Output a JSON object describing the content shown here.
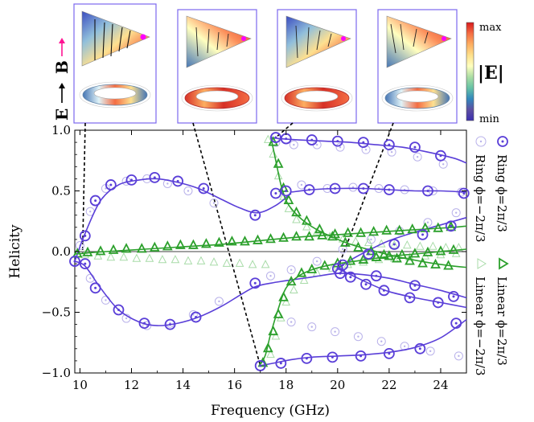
{
  "insets": {
    "field_labels": {
      "e": "E",
      "b": "B"
    },
    "count": 4
  },
  "colorbar": {
    "symbol": "|E|",
    "max_label": "max",
    "min_label": "min",
    "stops": [
      "#d7191c",
      "#f46d43",
      "#fdae61",
      "#fee08b",
      "#ffffbf",
      "#abdda4",
      "#66c2a5",
      "#3288bd",
      "#5e4fa2",
      "#3b2fb0"
    ]
  },
  "colors": {
    "ring": "#5a3fd8",
    "linear": "#2ca02c",
    "ring_faint": "#b9b2ea",
    "linear_faint": "#a8dba8"
  },
  "chart_data": {
    "type": "line",
    "xlabel": "Frequency (GHz)",
    "ylabel": "Helicity",
    "xlim": [
      9.8,
      25
    ],
    "ylim": [
      -1.0,
      1.0
    ],
    "x_ticks": [
      10,
      12,
      14,
      16,
      18,
      20,
      22,
      24
    ],
    "y_ticks": [
      -1.0,
      -0.5,
      0.0,
      0.5,
      1.0
    ],
    "y_tick_labels": [
      "−1.0",
      "−0.5",
      "0.0",
      "0.5",
      "1.0"
    ],
    "legend": [
      {
        "label": "Ring ϕ=2π/3",
        "marker": "circle"
      },
      {
        "label": "Ring ϕ=−2π/3",
        "marker": "circle-faint"
      },
      {
        "label": "Linear ϕ=2π/3",
        "marker": "triangle"
      },
      {
        "label": "Linear ϕ=−2π/3",
        "marker": "triangle-faint"
      }
    ],
    "ring_curves": [
      {
        "x": [
          9.8,
          10.2,
          10.8,
          11.5,
          12.3,
          13.0,
          13.8,
          14.6,
          15.5,
          16.2,
          16.9,
          17.6,
          18.2
        ],
        "y": [
          -0.08,
          0.15,
          0.42,
          0.55,
          0.59,
          0.6,
          0.57,
          0.52,
          0.43,
          0.36,
          0.32,
          0.38,
          0.48
        ]
      },
      {
        "x": [
          18.2,
          19.0,
          20.0,
          21.0,
          22.0,
          23.0,
          24.0,
          25.0
        ],
        "y": [
          0.49,
          0.51,
          0.52,
          0.52,
          0.51,
          0.5,
          0.5,
          0.49
        ]
      },
      {
        "x": [
          9.8,
          10.2,
          10.8,
          11.5,
          12.3,
          13.0,
          13.8,
          14.6,
          15.5,
          16.2,
          16.8,
          17.4,
          18.0,
          19.0,
          20.0,
          21.0,
          22.0,
          23.0,
          24.0,
          25.0
        ],
        "y": [
          -0.08,
          -0.12,
          -0.3,
          -0.48,
          -0.58,
          -0.61,
          -0.59,
          -0.54,
          -0.45,
          -0.36,
          -0.29,
          -0.26,
          -0.24,
          -0.21,
          -0.18,
          -0.19,
          -0.22,
          -0.27,
          -0.32,
          -0.38
        ]
      },
      {
        "x": [
          17.4,
          17.8,
          18.5,
          19.5,
          20.5,
          21.5,
          22.5,
          23.5,
          24.5,
          25.0
        ],
        "y": [
          0.94,
          0.93,
          0.92,
          0.91,
          0.9,
          0.88,
          0.86,
          0.82,
          0.77,
          0.73
        ]
      },
      {
        "x": [
          17.0,
          17.5,
          18.2,
          19.0,
          20.0,
          21.0,
          22.0,
          23.0,
          24.0,
          25.0
        ],
        "y": [
          -0.94,
          -0.92,
          -0.89,
          -0.87,
          -0.86,
          -0.85,
          -0.83,
          -0.79,
          -0.71,
          -0.56
        ]
      },
      {
        "x": [
          20.0,
          20.5,
          21.2,
          22.0,
          23.0,
          24.0,
          25.0
        ],
        "y": [
          -0.14,
          -0.07,
          0.01,
          0.09,
          0.16,
          0.22,
          0.28
        ]
      },
      {
        "x": [
          20.0,
          20.6,
          21.3,
          22.0,
          23.0,
          24.0,
          25.0
        ],
        "y": [
          -0.14,
          -0.2,
          -0.27,
          -0.33,
          -0.38,
          -0.42,
          -0.46
        ]
      }
    ],
    "ring_markers": {
      "x": [
        9.8,
        10.2,
        10.6,
        11.2,
        12.0,
        12.9,
        13.8,
        14.8,
        16.8,
        17.6,
        18.0,
        19.0,
        20.0,
        21.0,
        22.0,
        23.0,
        24.0,
        10.2,
        10.6,
        11.5,
        12.5,
        13.5,
        14.5,
        17.6,
        18.0,
        18.9,
        19.9,
        21.0,
        22.0,
        23.5,
        24.9,
        17.0,
        17.8,
        18.8,
        19.8,
        20.9,
        22.0,
        23.2,
        24.6,
        20.2,
        21.2,
        22.2,
        23.3,
        24.4,
        20.0,
        20.5,
        21.1,
        21.8,
        22.8,
        23.9,
        16.8,
        20.1,
        21.5,
        23.0,
        24.5
      ],
      "y": [
        -0.08,
        0.13,
        0.42,
        0.55,
        0.59,
        0.61,
        0.58,
        0.52,
        0.3,
        0.94,
        0.93,
        0.92,
        0.91,
        0.9,
        0.88,
        0.86,
        0.79,
        -0.1,
        -0.3,
        -0.48,
        -0.59,
        -0.6,
        -0.54,
        0.48,
        0.5,
        0.51,
        0.52,
        0.52,
        0.51,
        0.5,
        0.48,
        -0.94,
        -0.92,
        -0.88,
        -0.87,
        -0.86,
        -0.84,
        -0.8,
        -0.59,
        -0.11,
        -0.02,
        0.06,
        0.14,
        0.21,
        -0.14,
        -0.21,
        -0.27,
        -0.32,
        -0.38,
        -0.42,
        -0.26,
        -0.18,
        -0.2,
        -0.28,
        -0.37
      ]
    },
    "ring_faint_markers": {
      "x": [
        10.0,
        10.4,
        11.0,
        11.8,
        12.6,
        13.4,
        14.2,
        15.2,
        10.4,
        11.0,
        11.8,
        12.6,
        13.5,
        14.4,
        15.4,
        17.6,
        18.3,
        19.2,
        20.1,
        21.1,
        22.1,
        23.1,
        24.1,
        17.4,
        18.2,
        19.2,
        20.2,
        21.3,
        22.4,
        23.5,
        24.6,
        18.2,
        19.0,
        19.9,
        20.8,
        21.7,
        22.6,
        23.6,
        24.7,
        18.6,
        19.6,
        20.6,
        21.6,
        22.6,
        23.7,
        24.8
      ],
      "y": [
        0.05,
        0.33,
        0.52,
        0.58,
        0.6,
        0.56,
        0.5,
        0.4,
        -0.22,
        -0.4,
        -0.55,
        -0.61,
        -0.59,
        -0.52,
        -0.41,
        0.9,
        0.88,
        0.88,
        0.86,
        0.84,
        0.82,
        0.78,
        0.72,
        -0.2,
        -0.15,
        -0.08,
        0.02,
        0.1,
        0.17,
        0.24,
        0.32,
        -0.58,
        -0.62,
        -0.66,
        -0.7,
        -0.74,
        -0.78,
        -0.82,
        -0.86,
        0.55,
        0.52,
        0.53,
        0.52,
        0.51,
        0.5,
        0.49
      ]
    },
    "linear_curves": [
      {
        "x": [
          9.8,
          11.0,
          12.5,
          14.0,
          15.5,
          17.0,
          18.5,
          20.0,
          21.5,
          23.0,
          24.5,
          25.0
        ],
        "y": [
          -0.02,
          0.0,
          0.02,
          0.04,
          0.06,
          0.09,
          0.12,
          0.14,
          0.16,
          0.18,
          0.2,
          0.21
        ]
      },
      {
        "x": [
          17.0,
          17.2,
          17.4,
          17.7,
          18.0,
          18.5,
          19.0,
          19.5,
          20.0,
          21.0,
          22.0,
          23.0,
          24.0,
          25.0
        ],
        "y": [
          -0.93,
          -0.85,
          -0.68,
          -0.47,
          -0.3,
          -0.2,
          -0.15,
          -0.12,
          -0.1,
          -0.07,
          -0.04,
          -0.02,
          0.0,
          0.02
        ]
      },
      {
        "x": [
          17.4,
          17.6,
          17.8,
          18.0,
          18.3,
          18.7,
          19.2,
          19.8,
          20.5,
          21.5,
          22.5,
          23.5,
          24.5,
          25.0
        ],
        "y": [
          0.95,
          0.75,
          0.55,
          0.42,
          0.33,
          0.25,
          0.18,
          0.12,
          0.06,
          0.0,
          -0.05,
          -0.09,
          -0.12,
          -0.13
        ]
      }
    ],
    "linear_markers": {
      "x": [
        9.9,
        10.3,
        10.8,
        11.3,
        11.8,
        12.4,
        12.9,
        13.4,
        13.9,
        14.4,
        14.9,
        15.4,
        15.9,
        16.4,
        16.9,
        17.4,
        17.9,
        18.4,
        18.9,
        19.4,
        19.9,
        20.4,
        20.9,
        21.4,
        21.9,
        22.4,
        22.9,
        23.4,
        23.9,
        24.4,
        17.1,
        17.3,
        17.5,
        17.7,
        17.9,
        18.2,
        18.6,
        19.0,
        19.5,
        20.0,
        20.5,
        21.0,
        21.5,
        22.0,
        22.5,
        23.0,
        23.5,
        24.0,
        24.5,
        17.5,
        17.7,
        17.9,
        18.1,
        18.4,
        18.8,
        19.3,
        19.8,
        20.3,
        20.8,
        21.3,
        21.8,
        22.3,
        22.8,
        23.3,
        23.8,
        24.3
      ],
      "y": [
        -0.02,
        -0.01,
        0.0,
        0.01,
        0.02,
        0.02,
        0.03,
        0.04,
        0.05,
        0.05,
        0.06,
        0.07,
        0.08,
        0.08,
        0.09,
        0.1,
        0.11,
        0.12,
        0.12,
        0.13,
        0.14,
        0.15,
        0.15,
        0.16,
        0.17,
        0.17,
        0.18,
        0.19,
        0.19,
        0.2,
        -0.92,
        -0.8,
        -0.66,
        -0.52,
        -0.38,
        -0.25,
        -0.18,
        -0.15,
        -0.12,
        -0.1,
        -0.08,
        -0.07,
        -0.05,
        -0.04,
        -0.03,
        -0.02,
        -0.01,
        0.0,
        0.01,
        0.9,
        0.72,
        0.52,
        0.42,
        0.32,
        0.25,
        0.18,
        0.12,
        0.07,
        0.03,
        0.0,
        -0.03,
        -0.06,
        -0.08,
        -0.1,
        -0.11,
        -0.12
      ]
    },
    "linear_faint_markers": {
      "x": [
        10.2,
        10.7,
        11.2,
        11.7,
        12.2,
        12.7,
        13.2,
        13.7,
        14.2,
        14.7,
        15.2,
        15.7,
        16.2,
        16.7,
        17.2,
        17.3,
        17.5,
        17.7,
        17.9,
        18.1,
        18.4,
        18.8,
        19.2,
        19.7,
        20.2,
        20.7,
        21.2,
        21.7,
        22.2,
        22.7,
        23.2,
        23.7,
        24.2,
        24.7,
        17.4,
        17.6,
        17.8,
        18.0,
        18.3,
        18.7,
        19.2,
        19.8,
        20.4,
        21.0,
        21.6,
        22.2,
        22.8,
        23.4,
        24.0,
        24.6
      ],
      "y": [
        -0.03,
        -0.04,
        -0.05,
        -0.05,
        -0.06,
        -0.06,
        -0.07,
        -0.07,
        -0.08,
        -0.08,
        -0.09,
        -0.1,
        -0.1,
        -0.11,
        -0.11,
        0.92,
        0.8,
        0.62,
        0.45,
        0.35,
        0.26,
        0.2,
        0.16,
        0.12,
        0.1,
        0.08,
        0.07,
        0.06,
        0.05,
        0.05,
        0.04,
        0.04,
        0.03,
        0.03,
        -0.85,
        -0.7,
        -0.55,
        -0.42,
        -0.32,
        -0.24,
        -0.18,
        -0.14,
        -0.11,
        -0.09,
        -0.07,
        -0.06,
        -0.05,
        -0.04,
        -0.03,
        -0.02
      ]
    },
    "inset_leaders": [
      {
        "x": 10.1,
        "y": -0.02
      },
      {
        "x": 17.0,
        "y": -0.94
      },
      {
        "x": 17.6,
        "y": 0.94
      },
      {
        "x": 20.0,
        "y": -0.14
      }
    ]
  }
}
